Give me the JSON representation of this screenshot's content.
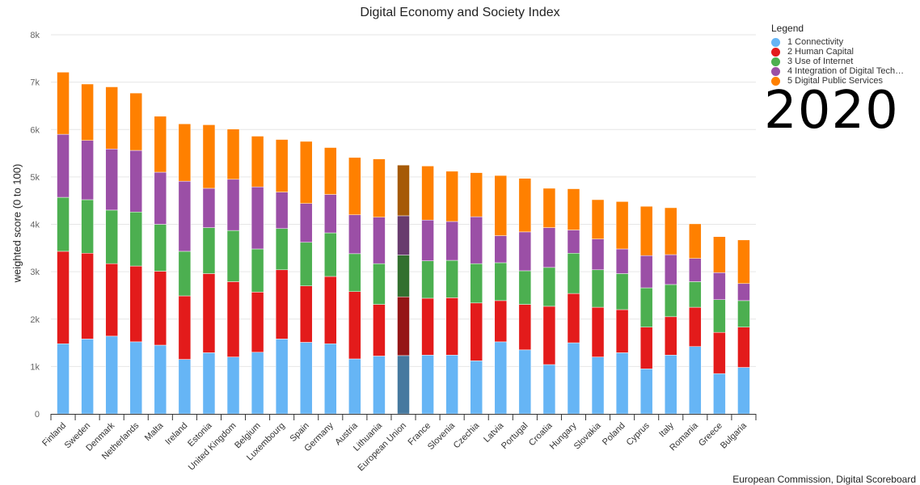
{
  "chart_data": {
    "type": "bar",
    "stacked": true,
    "title": "Digital Economy and Society Index",
    "ylabel": "weighted score (0 to 100)",
    "xlabel": "",
    "ylim": [
      0,
      8000
    ],
    "yticks": [
      "0",
      "1k",
      "2k",
      "3k",
      "4k",
      "5k",
      "6k",
      "7k",
      "8k"
    ],
    "grid": true,
    "legend_title": "Legend",
    "legend_position": "top-right",
    "year": "2020",
    "source": "European Commission, Digital Scoreboard",
    "highlight_category": "European Union",
    "categories": [
      "Finland",
      "Sweden",
      "Denmark",
      "Netherlands",
      "Malta",
      "Ireland",
      "Estonia",
      "United Kingdom",
      "Belgium",
      "Luxembourg",
      "Spain",
      "Germany",
      "Austria",
      "Lithuania",
      "European Union",
      "France",
      "Slovenia",
      "Czechia",
      "Latvia",
      "Portugal",
      "Croatia",
      "Hungary",
      "Slovakia",
      "Poland",
      "Cyprus",
      "Italy",
      "Romania",
      "Greece",
      "Bulgaria"
    ],
    "series": [
      {
        "name": "1 Connectivity",
        "color": "#66b5f5",
        "values": [
          1480,
          1580,
          1640,
          1520,
          1450,
          1150,
          1290,
          1200,
          1300,
          1580,
          1510,
          1480,
          1160,
          1220,
          1230,
          1240,
          1240,
          1120,
          1520,
          1350,
          1040,
          1500,
          1200,
          1290,
          950,
          1240,
          1420,
          850,
          980
        ]
      },
      {
        "name": "2 Human Capital",
        "color": "#e31b1b",
        "values": [
          1950,
          1810,
          1530,
          1600,
          1560,
          1340,
          1670,
          1590,
          1270,
          1460,
          1190,
          1420,
          1420,
          1090,
          1240,
          1200,
          1210,
          1220,
          870,
          960,
          1230,
          1040,
          1050,
          910,
          880,
          810,
          830,
          870,
          850
        ]
      },
      {
        "name": "3 Use of Internet",
        "color": "#4caf50",
        "values": [
          1140,
          1130,
          1130,
          1140,
          990,
          940,
          970,
          1080,
          910,
          870,
          920,
          920,
          800,
          860,
          880,
          790,
          790,
          830,
          800,
          710,
          820,
          850,
          790,
          760,
          830,
          680,
          540,
          690,
          560
        ]
      },
      {
        "name": "4 Integration of Digital Tech…",
        "color": "#9b4fa6",
        "values": [
          1330,
          1250,
          1290,
          1300,
          1100,
          1480,
          830,
          1080,
          1310,
          770,
          820,
          810,
          820,
          980,
          830,
          860,
          820,
          990,
          570,
          820,
          840,
          490,
          650,
          520,
          680,
          630,
          490,
          570,
          360
        ]
      },
      {
        "name": "5 Digital Public Services",
        "color": "#ff8000",
        "values": [
          1310,
          1190,
          1310,
          1210,
          1180,
          1210,
          1340,
          1060,
          1070,
          1110,
          1310,
          990,
          1210,
          1230,
          1070,
          1140,
          1060,
          930,
          1270,
          1130,
          830,
          870,
          830,
          1000,
          1040,
          990,
          730,
          760,
          920
        ]
      }
    ],
    "highlight_colors": [
      "#46799f",
      "#951516",
      "#32702f",
      "#683b6e",
      "#a65a06"
    ]
  }
}
